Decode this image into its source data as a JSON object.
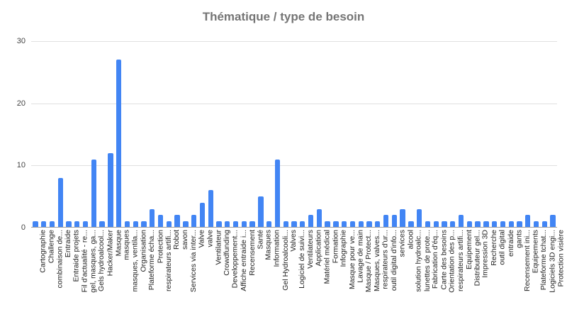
{
  "chart_data": {
    "type": "bar",
    "title": "Thématique / type de besoin",
    "xlabel": "",
    "ylabel": "",
    "ylim": [
      0,
      30
    ],
    "yticks": [
      0,
      10,
      20,
      30
    ],
    "grid": true,
    "legend": "none",
    "bar_color": "#4285f4",
    "categories": [
      "Cartographie",
      "Challenge",
      "combinaison de...",
      "Entraide",
      "Entraide projets",
      "Fil d'actualité - re...",
      "gel, masques, ga...",
      "Gels hydroalcool...",
      "Hacker/Maker",
      "Masque",
      "masques",
      "masques, ventila...",
      "Organisation",
      "Plateforme écha...",
      "Protection",
      "respirateurs artifi...",
      "Robot",
      "savon",
      "Services via inter...",
      "Valve",
      "valve",
      "Ventilateur",
      "Crowdfunding",
      "Developpement...",
      "Affiche entraide i...",
      "Recensement",
      "Santé",
      "Masques",
      "Information",
      "Gel Hydroalcooli...",
      "Valves",
      "Logiciel de suivi...",
      "Ventilateurs",
      "Application",
      "Matériel médical",
      "Formation",
      "Infographie",
      "Masque pour ve...",
      "Lavage de main",
      "Masque / Protect...",
      "Masques, valves...",
      "respirateurs d'ur...",
      "outil digital d'info...",
      "services",
      "alcool",
      "solution hydroalc...",
      "lunettes de prote...",
      "Fabrication d'éq...",
      "Carte des besoins",
      "Orientation des p...",
      "respirateurs artifi...",
      "Equipement",
      "Distributeur gel...",
      "Impression 3D",
      "Recherche",
      "outil digital",
      "entraide",
      "gants",
      "Recensement ini...",
      "Equipements",
      "Plateforme tchat...",
      "Logiciels 3D engi...",
      "Protection visière"
    ],
    "values": [
      1,
      1,
      1,
      8,
      1,
      1,
      1,
      11,
      1,
      12,
      27,
      1,
      1,
      1,
      3,
      2,
      1,
      2,
      1,
      2,
      4,
      6,
      1,
      1,
      1,
      1,
      1,
      5,
      1,
      11,
      1,
      1,
      1,
      2,
      3,
      1,
      1,
      1,
      1,
      1,
      1,
      1,
      2,
      2,
      3,
      1,
      3,
      1,
      1,
      1,
      1,
      2,
      1,
      1,
      1,
      1,
      1,
      1,
      1,
      2,
      1,
      1,
      2
    ]
  }
}
